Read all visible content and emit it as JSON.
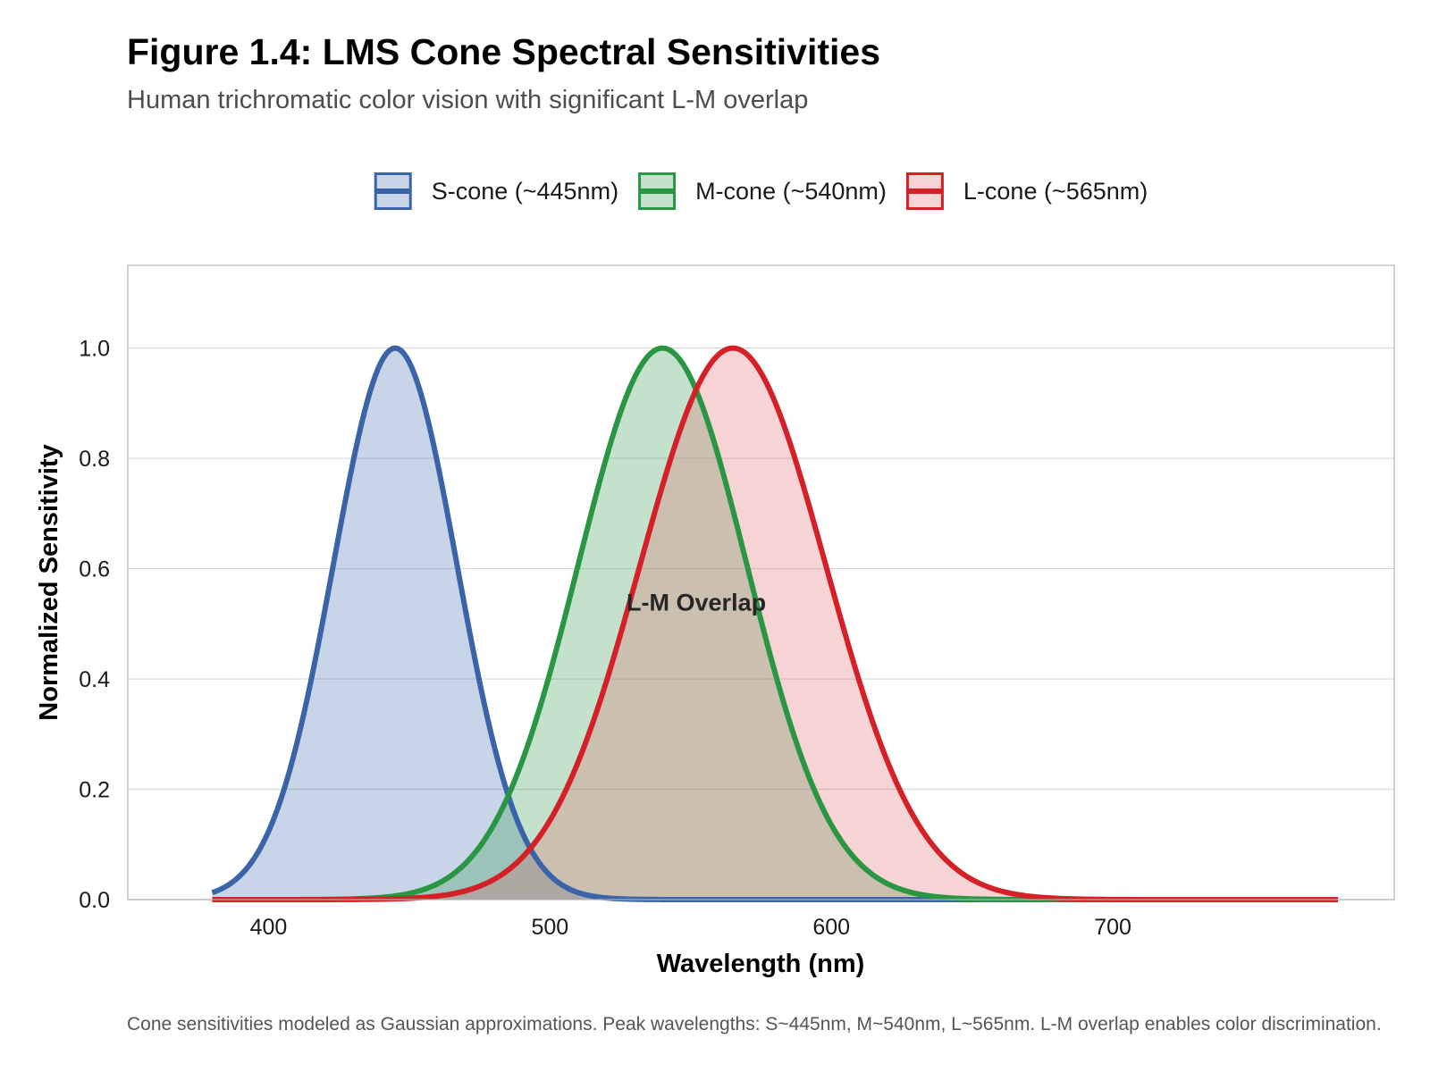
{
  "chart_data": {
    "type": "area",
    "title": "Figure 1.4: LMS Cone Spectral Sensitivities",
    "subtitle": "Human trichromatic color vision with significant L-M overlap",
    "xlabel": "Wavelength (nm)",
    "ylabel": "Normalized Sensitivity",
    "xlim": [
      350,
      800
    ],
    "ylim": [
      0,
      1.15
    ],
    "x_ticks": [
      400,
      500,
      600,
      700
    ],
    "y_ticks": [
      "0.0",
      "0.2",
      "0.4",
      "0.6",
      "0.8",
      "1.0"
    ],
    "grid": true,
    "legend_position": "top",
    "x_range": [
      380,
      780
    ],
    "series": [
      {
        "name": "S-cone (~445nm)",
        "peak": 445,
        "sigma": 22,
        "color": "#3a63a8",
        "fill": "#3a63a8"
      },
      {
        "name": "M-cone (~540nm)",
        "peak": 540,
        "sigma": 30,
        "color": "#2a9644",
        "fill": "#2a9644"
      },
      {
        "name": "L-cone (~565nm)",
        "peak": 565,
        "sigma": 33,
        "color": "#d42027",
        "fill": "#e0636a"
      }
    ],
    "annotations": [
      {
        "text": "L-M Overlap",
        "x": 552,
        "y": 0.54
      }
    ],
    "caption": "Cone sensitivities modeled as Gaussian approximations. Peak wavelengths: S~445nm, M~540nm, L~565nm. L-M overlap enables color discrimination."
  }
}
